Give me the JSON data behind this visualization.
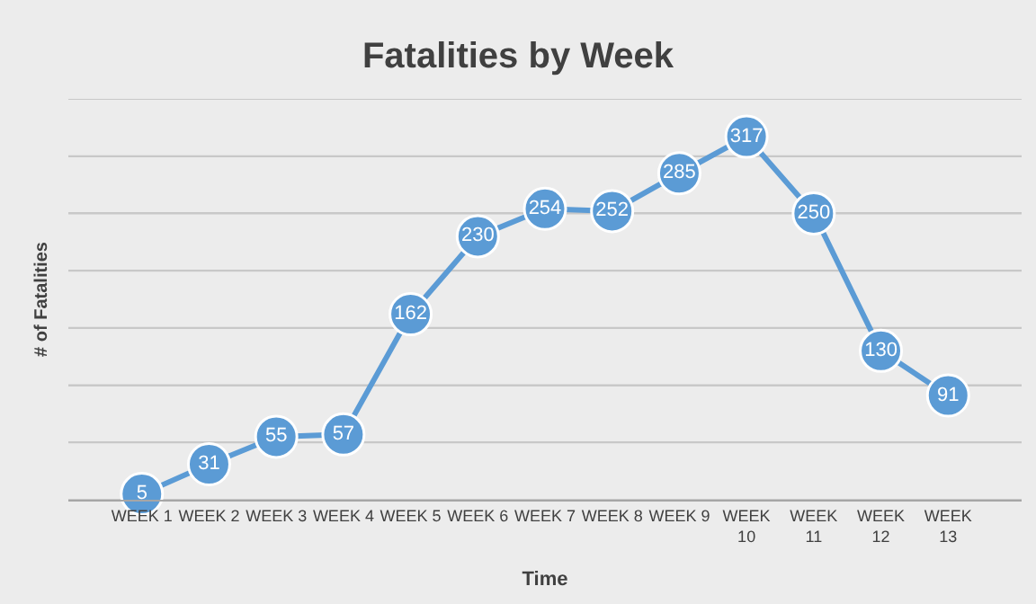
{
  "chart_data": {
    "type": "line",
    "title": "Fatalities by Week",
    "xlabel": "Time",
    "ylabel": "# of Fatalities",
    "categories": [
      "WEEK 1",
      "WEEK 2",
      "WEEK 3",
      "WEEK 4",
      "WEEK 5",
      "WEEK 6",
      "WEEK 7",
      "WEEK 8",
      "WEEK 9",
      "WEEK 10",
      "WEEK 11",
      "WEEK 12",
      "WEEK 13"
    ],
    "series": [
      {
        "color": "#5b9bd5",
        "values": [
          5,
          31,
          55,
          57,
          162,
          230,
          254,
          252,
          285,
          317,
          250,
          130,
          91
        ]
      }
    ],
    "ylim": [
      0,
      350
    ],
    "yticks": [
      {
        "value": 0,
        "label": null
      },
      {
        "value": 50,
        "label": null
      },
      {
        "value": 100,
        "label": null
      },
      {
        "value": 150,
        "label": null
      },
      {
        "value": 200,
        "label": null
      },
      {
        "value": 250,
        "label": null
      },
      {
        "value": 300,
        "label": null
      },
      {
        "value": 350,
        "label": null
      }
    ],
    "tick_labels": "x",
    "grid": "y",
    "marker": "circle",
    "line_style": "solid",
    "data_labels": true
  }
}
